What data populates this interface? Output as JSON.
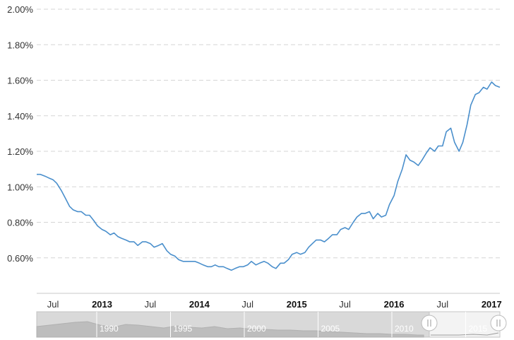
{
  "chart_data": {
    "type": "line",
    "title": "",
    "xlabel": "",
    "ylabel": "",
    "xlim": [
      "2012-05-01",
      "2017-02-01"
    ],
    "ylim": [
      0.4,
      2.0
    ],
    "y_tick_values": [
      0.6,
      0.8,
      1.0,
      1.2,
      1.4,
      1.6,
      1.8,
      2.0
    ],
    "y_tick_labels": [
      "0.60%",
      "0.80%",
      "1.00%",
      "1.20%",
      "1.40%",
      "1.60%",
      "1.80%",
      "2.00%"
    ],
    "x_ticks": [
      {
        "date": "2012-07-01",
        "label": "Jul",
        "bold": false
      },
      {
        "date": "2013-01-01",
        "label": "2013",
        "bold": true
      },
      {
        "date": "2013-07-01",
        "label": "Jul",
        "bold": false
      },
      {
        "date": "2014-01-01",
        "label": "2014",
        "bold": true
      },
      {
        "date": "2014-07-01",
        "label": "Jul",
        "bold": false
      },
      {
        "date": "2015-01-01",
        "label": "2015",
        "bold": true
      },
      {
        "date": "2015-07-01",
        "label": "Jul",
        "bold": false
      },
      {
        "date": "2016-01-01",
        "label": "2016",
        "bold": true
      },
      {
        "date": "2016-07-01",
        "label": "Jul",
        "bold": false
      },
      {
        "date": "2017-01-01",
        "label": "2017",
        "bold": true
      }
    ],
    "grid": true,
    "line_color": "#4a8fcc",
    "series": [
      {
        "points": [
          [
            "2012-05-01",
            1.07
          ],
          [
            "2012-05-15",
            1.07
          ],
          [
            "2012-06-01",
            1.06
          ],
          [
            "2012-06-15",
            1.05
          ],
          [
            "2012-07-01",
            1.04
          ],
          [
            "2012-07-15",
            1.02
          ],
          [
            "2012-08-01",
            0.98
          ],
          [
            "2012-08-15",
            0.94
          ],
          [
            "2012-09-01",
            0.89
          ],
          [
            "2012-09-15",
            0.87
          ],
          [
            "2012-10-01",
            0.86
          ],
          [
            "2012-10-15",
            0.86
          ],
          [
            "2012-11-01",
            0.84
          ],
          [
            "2012-11-15",
            0.84
          ],
          [
            "2012-12-01",
            0.81
          ],
          [
            "2012-12-15",
            0.78
          ],
          [
            "2013-01-01",
            0.76
          ],
          [
            "2013-01-15",
            0.75
          ],
          [
            "2013-02-01",
            0.73
          ],
          [
            "2013-02-15",
            0.74
          ],
          [
            "2013-03-01",
            0.72
          ],
          [
            "2013-03-15",
            0.71
          ],
          [
            "2013-04-01",
            0.7
          ],
          [
            "2013-04-15",
            0.69
          ],
          [
            "2013-05-01",
            0.69
          ],
          [
            "2013-05-15",
            0.67
          ],
          [
            "2013-06-01",
            0.69
          ],
          [
            "2013-06-15",
            0.69
          ],
          [
            "2013-07-01",
            0.68
          ],
          [
            "2013-07-15",
            0.66
          ],
          [
            "2013-08-01",
            0.67
          ],
          [
            "2013-08-15",
            0.68
          ],
          [
            "2013-09-01",
            0.64
          ],
          [
            "2013-09-15",
            0.62
          ],
          [
            "2013-10-01",
            0.61
          ],
          [
            "2013-10-15",
            0.59
          ],
          [
            "2013-11-01",
            0.58
          ],
          [
            "2013-11-15",
            0.58
          ],
          [
            "2013-12-01",
            0.58
          ],
          [
            "2013-12-15",
            0.58
          ],
          [
            "2014-01-01",
            0.57
          ],
          [
            "2014-01-15",
            0.56
          ],
          [
            "2014-02-01",
            0.55
          ],
          [
            "2014-02-15",
            0.55
          ],
          [
            "2014-03-01",
            0.56
          ],
          [
            "2014-03-15",
            0.55
          ],
          [
            "2014-04-01",
            0.55
          ],
          [
            "2014-04-15",
            0.54
          ],
          [
            "2014-05-01",
            0.53
          ],
          [
            "2014-05-15",
            0.54
          ],
          [
            "2014-06-01",
            0.55
          ],
          [
            "2014-06-15",
            0.55
          ],
          [
            "2014-07-01",
            0.56
          ],
          [
            "2014-07-15",
            0.58
          ],
          [
            "2014-08-01",
            0.56
          ],
          [
            "2014-08-15",
            0.57
          ],
          [
            "2014-09-01",
            0.58
          ],
          [
            "2014-09-15",
            0.57
          ],
          [
            "2014-10-01",
            0.55
          ],
          [
            "2014-10-15",
            0.54
          ],
          [
            "2014-11-01",
            0.57
          ],
          [
            "2014-11-15",
            0.57
          ],
          [
            "2014-12-01",
            0.59
          ],
          [
            "2014-12-15",
            0.62
          ],
          [
            "2015-01-01",
            0.63
          ],
          [
            "2015-01-15",
            0.62
          ],
          [
            "2015-02-01",
            0.63
          ],
          [
            "2015-02-15",
            0.66
          ],
          [
            "2015-03-01",
            0.68
          ],
          [
            "2015-03-15",
            0.7
          ],
          [
            "2015-04-01",
            0.7
          ],
          [
            "2015-04-15",
            0.69
          ],
          [
            "2015-05-01",
            0.71
          ],
          [
            "2015-05-15",
            0.73
          ],
          [
            "2015-06-01",
            0.73
          ],
          [
            "2015-06-15",
            0.76
          ],
          [
            "2015-07-01",
            0.77
          ],
          [
            "2015-07-15",
            0.76
          ],
          [
            "2015-08-01",
            0.8
          ],
          [
            "2015-08-15",
            0.83
          ],
          [
            "2015-09-01",
            0.85
          ],
          [
            "2015-09-15",
            0.85
          ],
          [
            "2015-10-01",
            0.86
          ],
          [
            "2015-10-15",
            0.82
          ],
          [
            "2015-11-01",
            0.85
          ],
          [
            "2015-11-15",
            0.83
          ],
          [
            "2015-12-01",
            0.84
          ],
          [
            "2015-12-15",
            0.9
          ],
          [
            "2016-01-01",
            0.95
          ],
          [
            "2016-01-15",
            1.03
          ],
          [
            "2016-02-01",
            1.1
          ],
          [
            "2016-02-15",
            1.18
          ],
          [
            "2016-03-01",
            1.15
          ],
          [
            "2016-03-15",
            1.14
          ],
          [
            "2016-04-01",
            1.12
          ],
          [
            "2016-04-15",
            1.15
          ],
          [
            "2016-05-01",
            1.19
          ],
          [
            "2016-05-15",
            1.22
          ],
          [
            "2016-06-01",
            1.2
          ],
          [
            "2016-06-15",
            1.23
          ],
          [
            "2016-07-01",
            1.23
          ],
          [
            "2016-07-15",
            1.31
          ],
          [
            "2016-08-01",
            1.33
          ],
          [
            "2016-08-15",
            1.25
          ],
          [
            "2016-09-01",
            1.2
          ],
          [
            "2016-09-15",
            1.25
          ],
          [
            "2016-10-01",
            1.35
          ],
          [
            "2016-10-15",
            1.46
          ],
          [
            "2016-11-01",
            1.52
          ],
          [
            "2016-11-15",
            1.53
          ],
          [
            "2016-12-01",
            1.56
          ],
          [
            "2016-12-15",
            1.55
          ],
          [
            "2017-01-01",
            1.59
          ],
          [
            "2017-01-15",
            1.57
          ],
          [
            "2017-02-01",
            1.56
          ]
        ]
      }
    ],
    "navigator": {
      "labels": [
        "1990",
        "1995",
        "2000",
        "2005",
        "2010",
        "2015"
      ]
    }
  }
}
